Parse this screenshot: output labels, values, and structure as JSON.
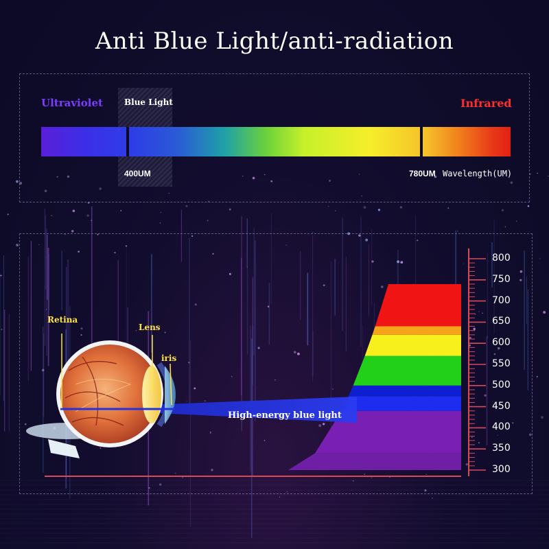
{
  "title": "Anti Blue Light/anti-radiation",
  "spectrum": {
    "ultraviolet_label": "Ultraviolet",
    "blue_light_label": "Blue Light",
    "infrared_label": "Infrared",
    "marker_400": "400UM",
    "marker_780": "780UM",
    "wavelength_label": "Wavelength(UM)"
  },
  "eye": {
    "retina_label": "Retina",
    "lens_label": "Lens",
    "iris_label": "iris",
    "beam_label": "High-energy blue light"
  },
  "scale": {
    "ticks": [
      "800",
      "750",
      "700",
      "650",
      "600",
      "550",
      "500",
      "450",
      "400",
      "350",
      "300"
    ]
  },
  "colors": {
    "ultraviolet": "#7b3cff",
    "infrared": "#ff2d2d",
    "eye_labels": "#ffe640",
    "beam": "#2233dd"
  },
  "bands": [
    {
      "from": 300,
      "to": 340,
      "color": "#6e1fa6"
    },
    {
      "from": 340,
      "to": 440,
      "color": "#7a1fb4"
    },
    {
      "from": 440,
      "to": 475,
      "color": "#1e2cf0"
    },
    {
      "from": 475,
      "to": 500,
      "color": "#0d1fd0"
    },
    {
      "from": 500,
      "to": 570,
      "color": "#22d01a"
    },
    {
      "from": 570,
      "to": 620,
      "color": "#f8f01c"
    },
    {
      "from": 620,
      "to": 640,
      "color": "#f5a51a"
    },
    {
      "from": 640,
      "to": 740,
      "color": "#f01414"
    }
  ]
}
